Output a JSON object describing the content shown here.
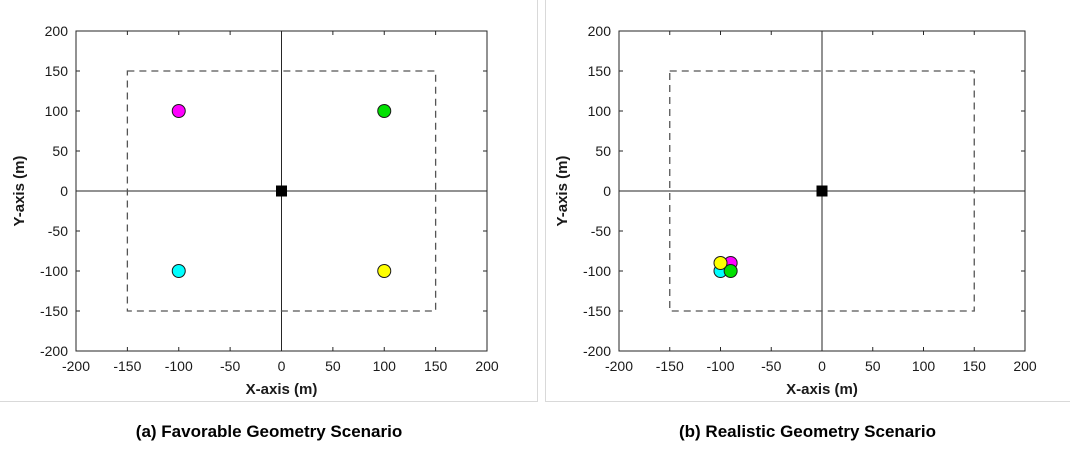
{
  "chart_data": [
    {
      "type": "scatter",
      "caption": "(a) Favorable Geometry Scenario",
      "xlabel": "X-axis (m)",
      "ylabel": "Y-axis (m)",
      "xlim": [
        -200,
        200
      ],
      "ylim": [
        -200,
        200
      ],
      "xticks": [
        "-200",
        "-150",
        "-100",
        "-50",
        "0",
        "50",
        "100",
        "150",
        "200"
      ],
      "yticks": [
        "200",
        "150",
        "100",
        "50",
        "0",
        "-50",
        "-100",
        "-150",
        "-200"
      ],
      "grid": false,
      "boundary": {
        "x": [
          -150,
          150
        ],
        "y": [
          -150,
          150
        ],
        "style": "dashed"
      },
      "center_marker": {
        "x": 0,
        "y": 0,
        "shape": "square",
        "color": "#000000"
      },
      "points": [
        {
          "x": -100,
          "y": 100,
          "color": "#ff00ff"
        },
        {
          "x": 100,
          "y": 100,
          "color": "#00e000"
        },
        {
          "x": -100,
          "y": -100,
          "color": "#00ffff"
        },
        {
          "x": 100,
          "y": -100,
          "color": "#ffff00"
        }
      ]
    },
    {
      "type": "scatter",
      "caption": "(b) Realistic Geometry Scenario",
      "xlabel": "X-axis (m)",
      "ylabel": "Y-axis (m)",
      "xlim": [
        -200,
        200
      ],
      "ylim": [
        -200,
        200
      ],
      "xticks": [
        "-200",
        "-150",
        "-100",
        "-50",
        "0",
        "50",
        "100",
        "150",
        "200"
      ],
      "yticks": [
        "200",
        "150",
        "100",
        "50",
        "0",
        "-50",
        "-100",
        "-150",
        "-200"
      ],
      "grid": false,
      "boundary": {
        "x": [
          -150,
          150
        ],
        "y": [
          -150,
          150
        ],
        "style": "dashed"
      },
      "center_marker": {
        "x": 0,
        "y": 0,
        "shape": "square",
        "color": "#000000"
      },
      "points": [
        {
          "x": -100,
          "y": -100,
          "color": "#00ffff"
        },
        {
          "x": -90,
          "y": -90,
          "color": "#ff00ff"
        },
        {
          "x": -90,
          "y": -100,
          "color": "#00e000"
        },
        {
          "x": -100,
          "y": -90,
          "color": "#ffff00"
        }
      ]
    }
  ]
}
